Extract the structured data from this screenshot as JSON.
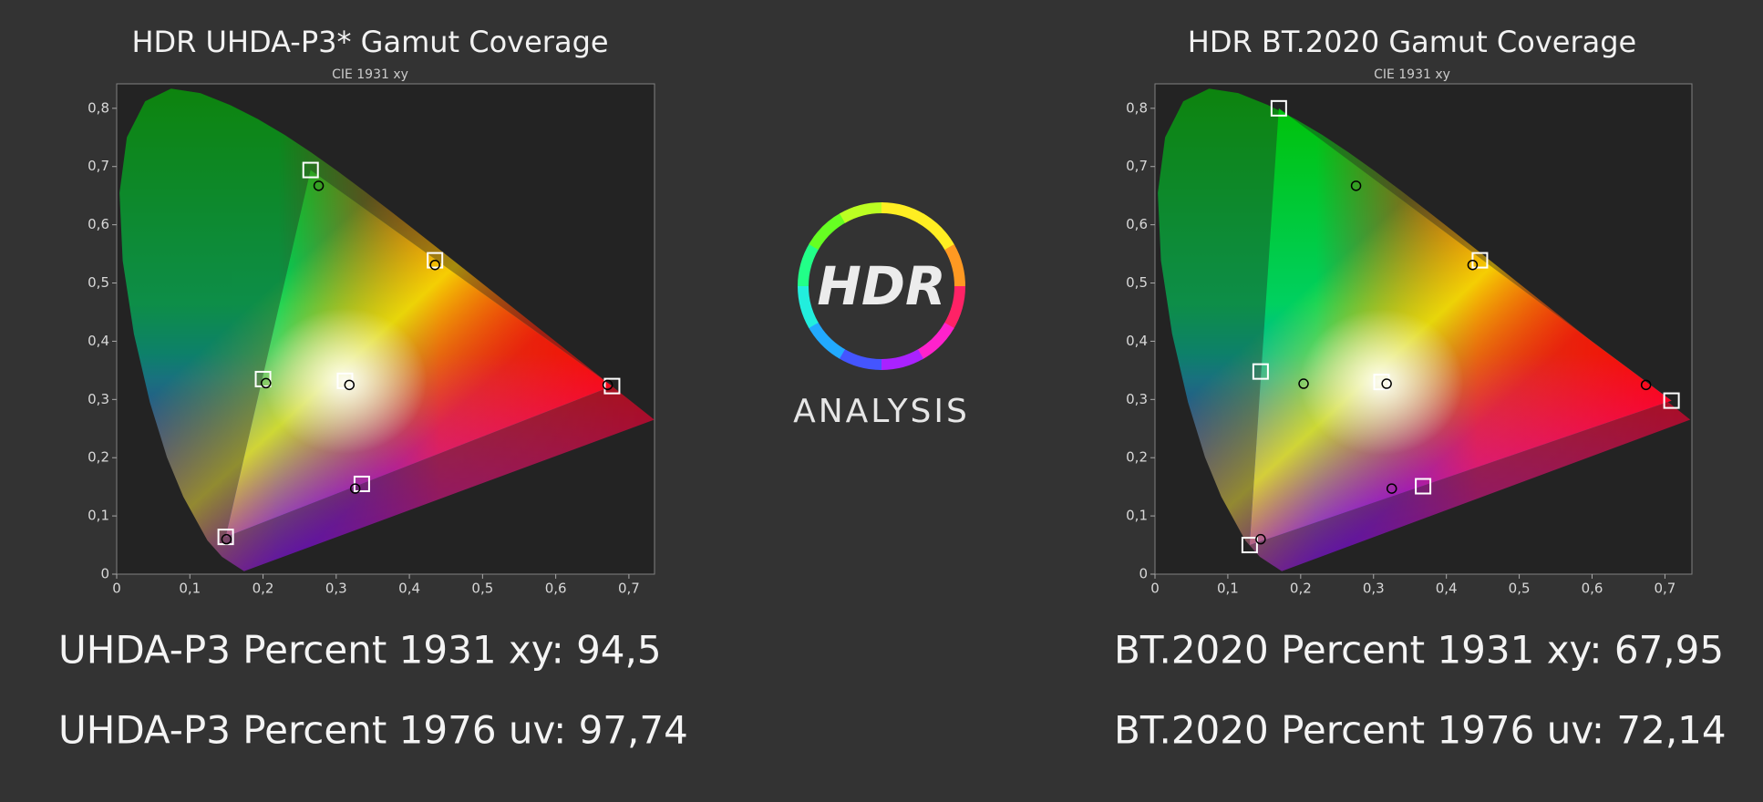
{
  "chart_data": [
    {
      "type": "scatter",
      "title": "HDR UHDA-P3* Gamut Coverage",
      "subtitle": "CIE 1931 xy",
      "xlim": [
        0,
        0.735
      ],
      "ylim": [
        0,
        0.842
      ],
      "xticks": [
        0,
        {
          "value": 0.1,
          "label": "0,1"
        },
        {
          "value": 0.2,
          "label": "0,2"
        },
        {
          "value": 0.3,
          "label": "0,3"
        },
        {
          "value": 0.4,
          "label": "0,4"
        },
        {
          "value": 0.5,
          "label": "0,5"
        },
        {
          "value": 0.6,
          "label": "0,6"
        },
        {
          "value": 0.7,
          "label": "0,7"
        }
      ],
      "yticks": [
        0,
        {
          "value": 0.1,
          "label": "0,1"
        },
        {
          "value": 0.2,
          "label": "0,2"
        },
        {
          "value": 0.3,
          "label": "0,3"
        },
        {
          "value": 0.4,
          "label": "0,4"
        },
        {
          "value": 0.5,
          "label": "0,5"
        },
        {
          "value": 0.6,
          "label": "0,6"
        },
        {
          "value": 0.7,
          "label": "0,7"
        },
        {
          "value": 0.8,
          "label": "0,8"
        }
      ],
      "series": [
        {
          "marker": "square",
          "color": "#ffffff",
          "x": [
            0.677,
            0.265,
            0.149,
            0.2,
            0.335,
            0.435,
            0.312
          ],
          "y": [
            0.323,
            0.694,
            0.064,
            0.335,
            0.155,
            0.539,
            0.332
          ]
        },
        {
          "marker": "circle",
          "color": "#000000",
          "x": [
            0.671,
            0.276,
            0.15,
            0.204,
            0.326,
            0.435,
            0.318
          ],
          "y": [
            0.325,
            0.667,
            0.06,
            0.328,
            0.147,
            0.531,
            0.325
          ]
        }
      ]
    },
    {
      "type": "scatter",
      "title": "HDR BT.2020  Gamut Coverage",
      "subtitle": "CIE 1931 xy",
      "xlim": [
        0,
        0.737
      ],
      "ylim": [
        0,
        0.842
      ],
      "xticks": [
        0,
        {
          "value": 0.1,
          "label": "0,1"
        },
        {
          "value": 0.2,
          "label": "0,2"
        },
        {
          "value": 0.3,
          "label": "0,3"
        },
        {
          "value": 0.4,
          "label": "0,4"
        },
        {
          "value": 0.5,
          "label": "0,5"
        },
        {
          "value": 0.6,
          "label": "0,6"
        },
        {
          "value": 0.7,
          "label": "0,7"
        }
      ],
      "yticks": [
        0,
        {
          "value": 0.1,
          "label": "0,1"
        },
        {
          "value": 0.2,
          "label": "0,2"
        },
        {
          "value": 0.3,
          "label": "0,3"
        },
        {
          "value": 0.4,
          "label": "0,4"
        },
        {
          "value": 0.5,
          "label": "0,5"
        },
        {
          "value": 0.6,
          "label": "0,6"
        },
        {
          "value": 0.7,
          "label": "0,7"
        },
        {
          "value": 0.8,
          "label": "0,8"
        }
      ],
      "series": [
        {
          "marker": "square",
          "color": "#ffffff",
          "x": [
            0.709,
            0.17,
            0.13,
            0.145,
            0.368,
            0.446,
            0.311
          ],
          "y": [
            0.298,
            0.8,
            0.05,
            0.348,
            0.151,
            0.539,
            0.33
          ]
        },
        {
          "marker": "circle",
          "color": "#000000",
          "x": [
            0.674,
            0.276,
            0.145,
            0.204,
            0.325,
            0.436,
            0.318
          ],
          "y": [
            0.325,
            0.667,
            0.06,
            0.327,
            0.147,
            0.531,
            0.327
          ]
        }
      ]
    }
  ],
  "stats": [
    [
      "UHDA-P3 Percent 1931 xy: 94,5",
      "UHDA-P3 Percent 1976 uv: 97,74"
    ],
    [
      "BT.2020 Percent 1931 xy: 67,95",
      "BT.2020 Percent 1976 uv: 72,14"
    ]
  ],
  "logo": {
    "text": "HDR",
    "caption": "ANALYSIS"
  }
}
